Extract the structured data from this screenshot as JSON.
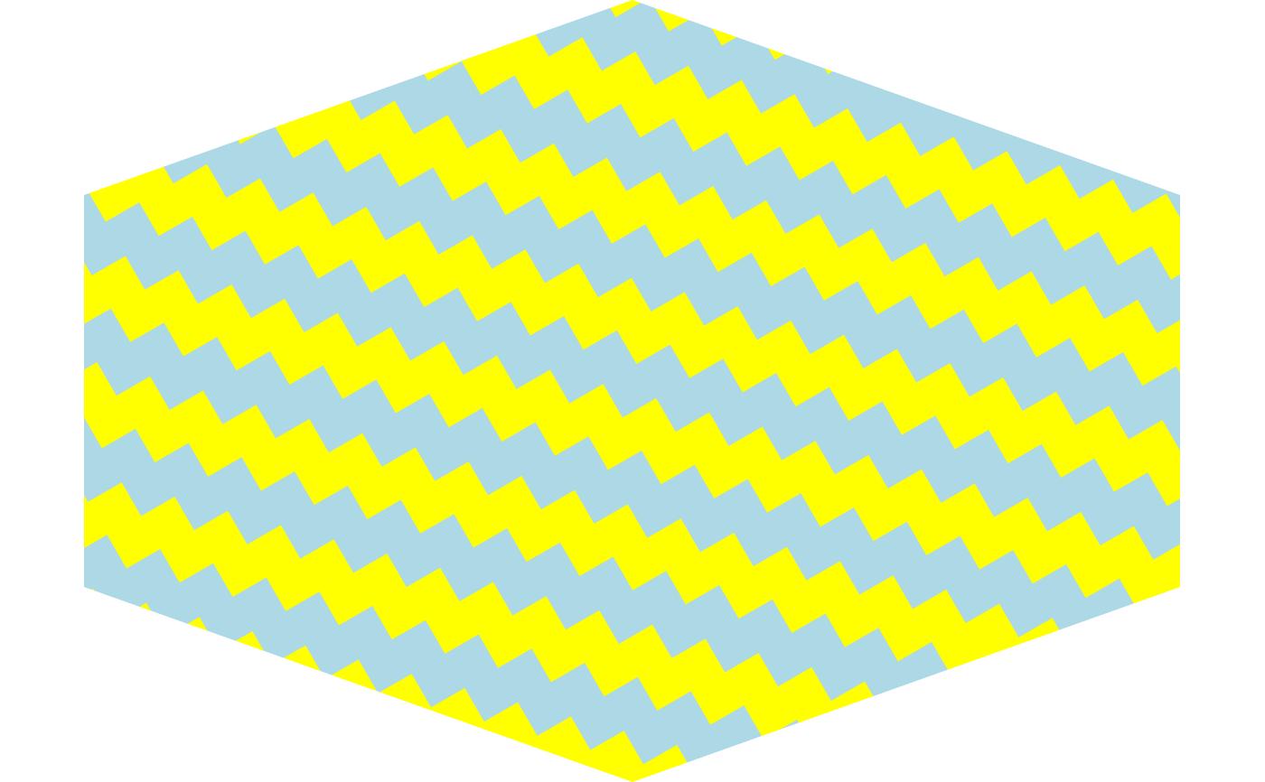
{
  "figure": {
    "shape": "hexagon",
    "pattern": "herringbone",
    "rotation_degrees": -30,
    "brick_aspect": "1x2",
    "colors": {
      "background": "#ffffff",
      "horizontal_bricks": "#add8e6",
      "vertical_bricks": "#ffff00"
    }
  }
}
